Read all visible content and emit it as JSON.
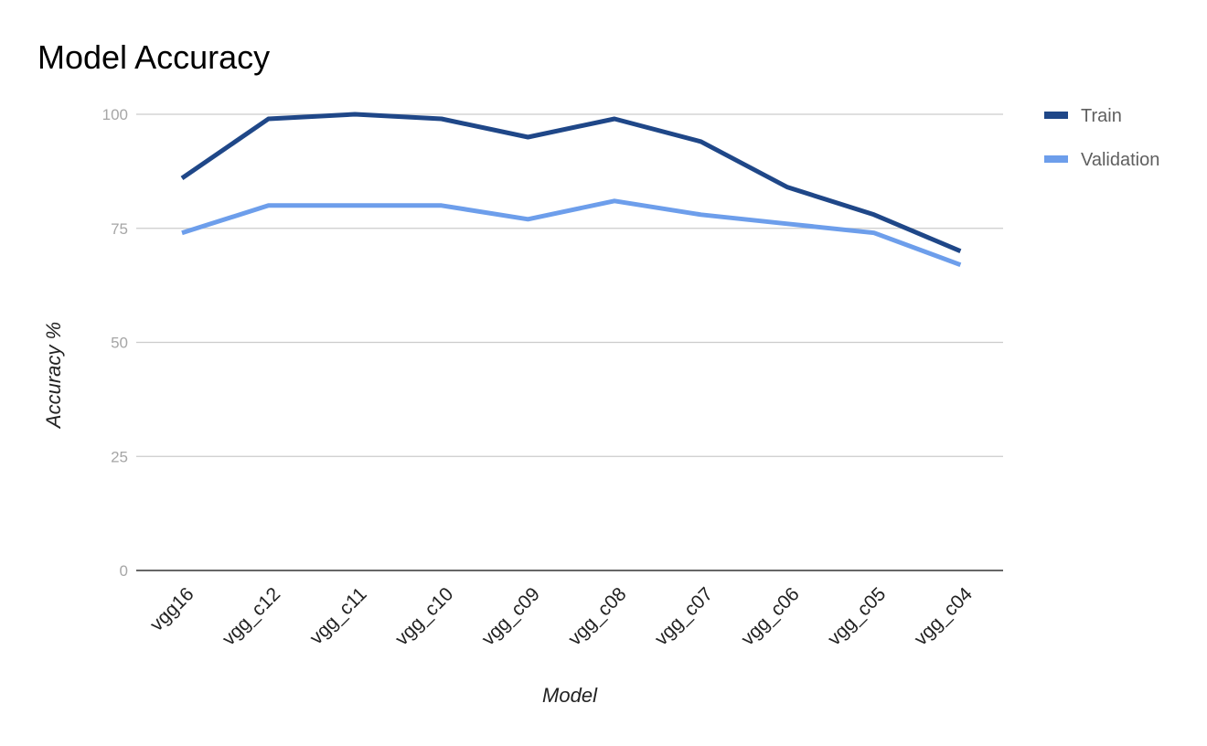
{
  "chart_data": {
    "type": "line",
    "title": "Model Accuracy",
    "xlabel": "Model",
    "ylabel": "Accuracy %",
    "categories": [
      "vgg16",
      "vgg_c12",
      "vgg_c11",
      "vgg_c10",
      "vgg_c09",
      "vgg_c08",
      "vgg_c07",
      "vgg_c06",
      "vgg_c05",
      "vgg_c04"
    ],
    "series": [
      {
        "name": "Train",
        "color": "#1f4788",
        "values": [
          86,
          99,
          100,
          99,
          95,
          99,
          94,
          84,
          78,
          70
        ]
      },
      {
        "name": "Validation",
        "color": "#6d9eeb",
        "values": [
          74,
          80,
          80,
          80,
          77,
          81,
          78,
          76,
          74,
          67
        ]
      }
    ],
    "ylim": [
      0,
      100
    ],
    "yticks": [
      0,
      25,
      50,
      75,
      100
    ],
    "grid": true,
    "legend_position": "right"
  }
}
